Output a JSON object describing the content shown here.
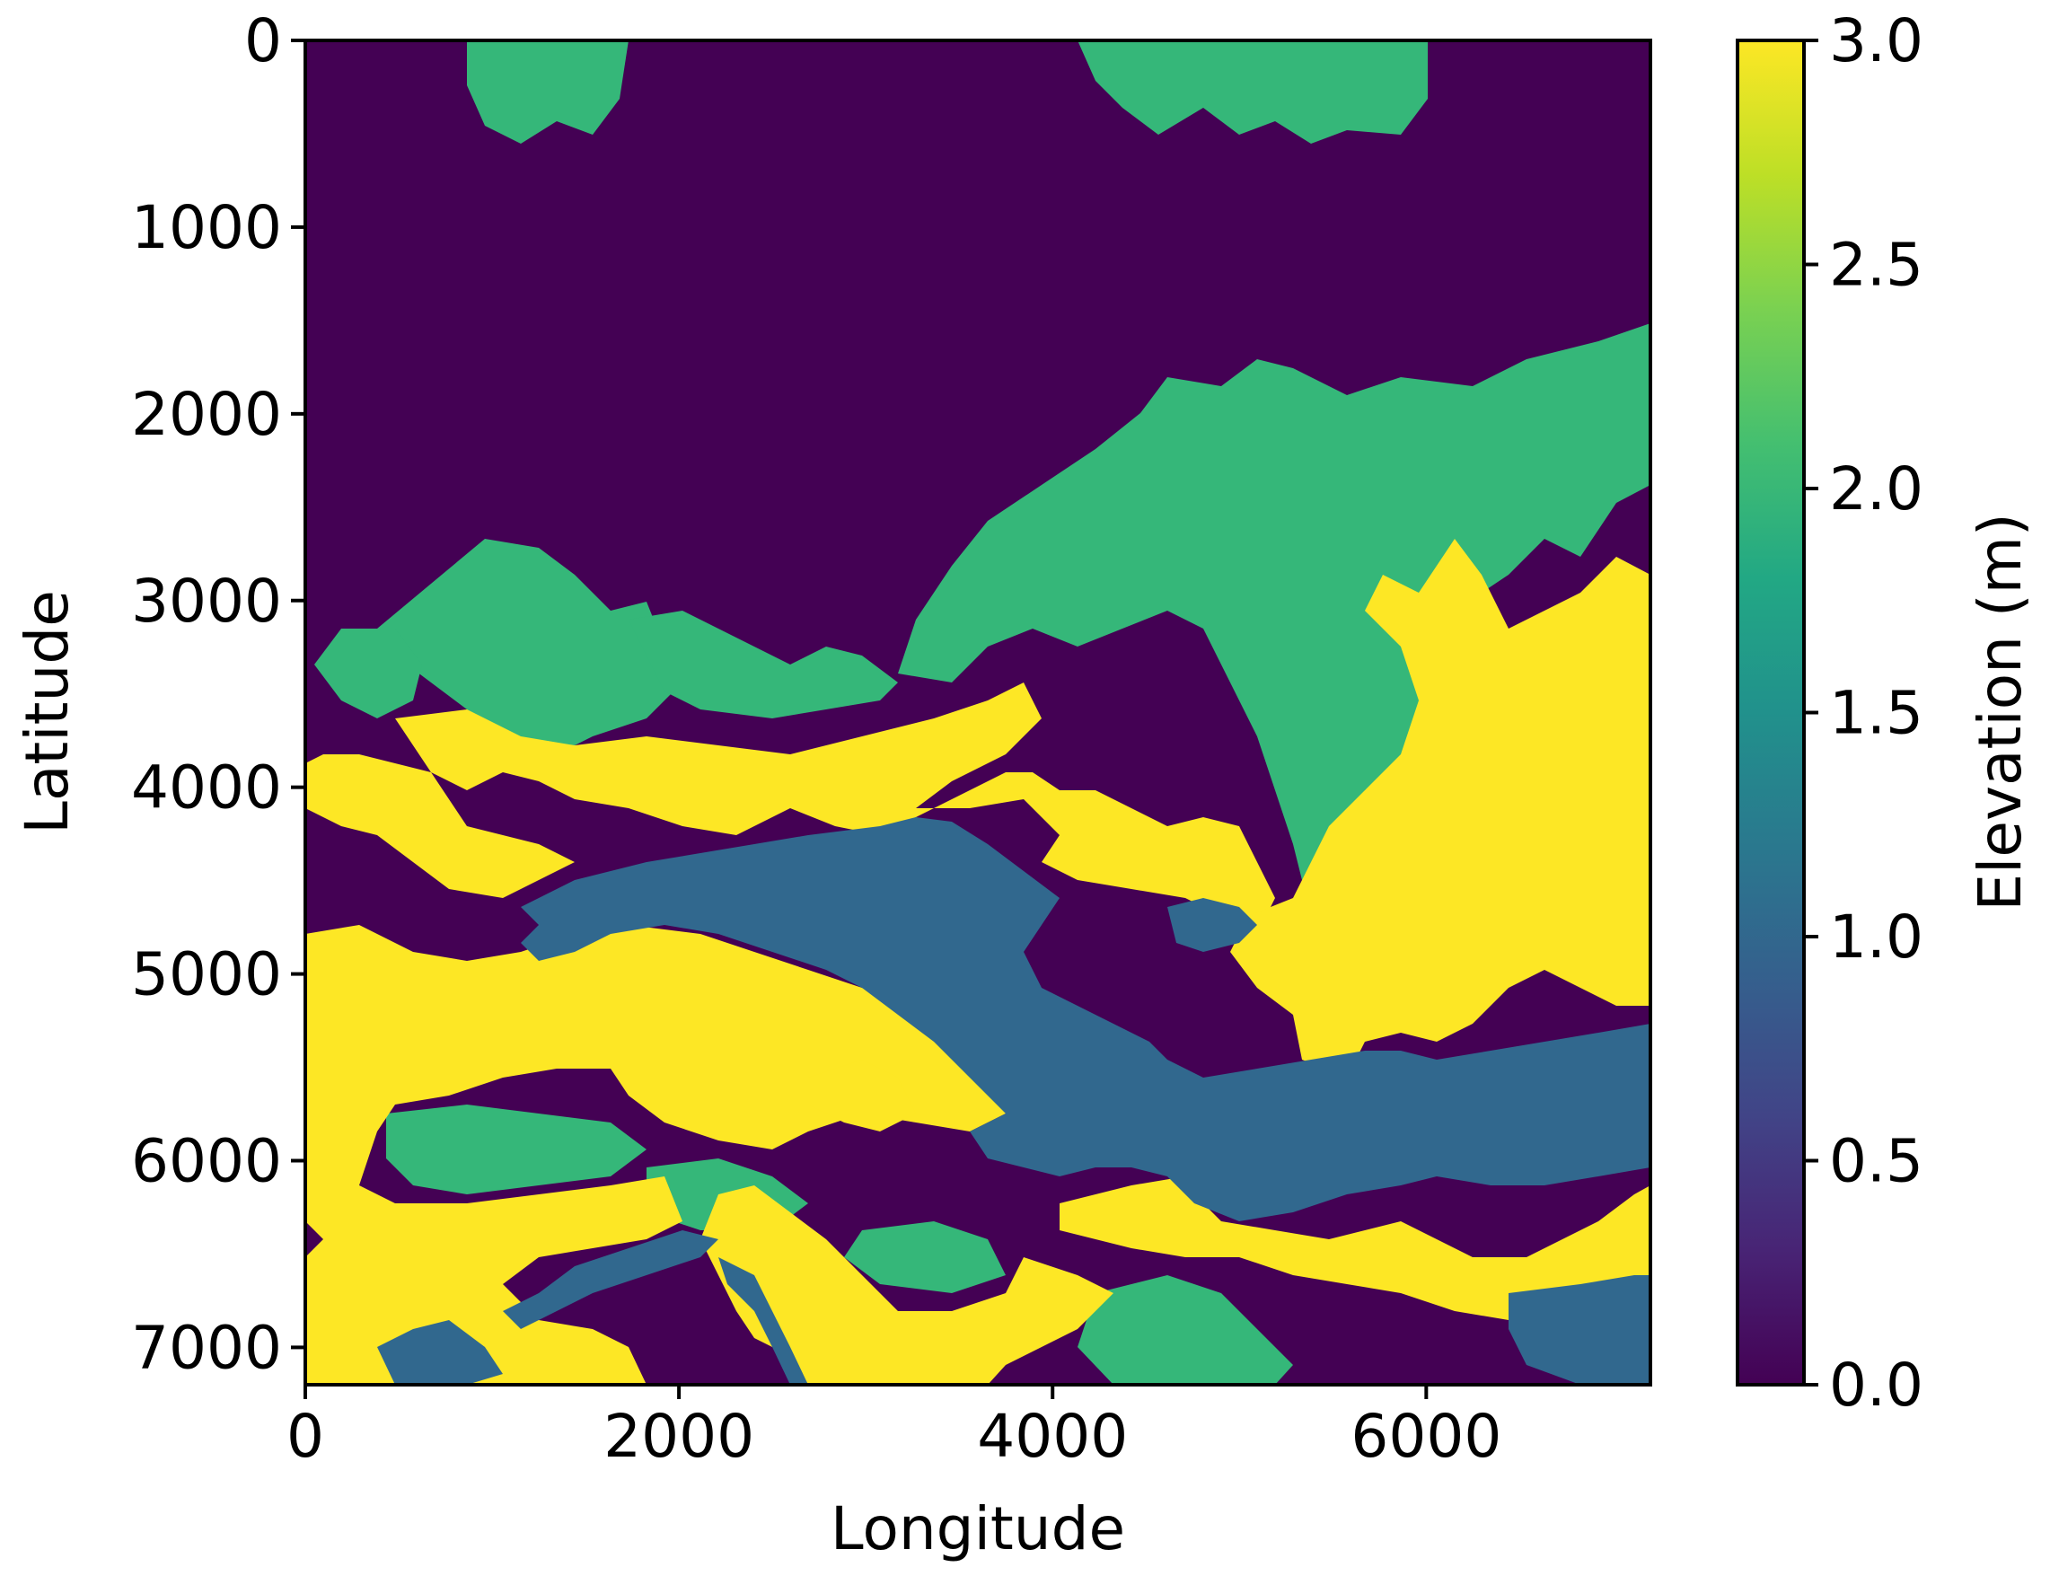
{
  "chart_data": {
    "type": "heatmap",
    "title": "",
    "xlabel": "Longitude",
    "ylabel": "Latitude",
    "xlim": [
      0,
      7200
    ],
    "ylim": [
      7200,
      0
    ],
    "x_ticks": [
      "0",
      "2000",
      "4000",
      "6000"
    ],
    "y_ticks": [
      "0",
      "1000",
      "2000",
      "3000",
      "4000",
      "5000",
      "6000",
      "7000"
    ],
    "colorbar": {
      "label": "Elevation (m)",
      "range": [
        0.0,
        3.0
      ],
      "ticks": [
        "0.0",
        "0.5",
        "1.0",
        "1.5",
        "2.0",
        "2.5",
        "3.0"
      ],
      "colormap": "viridis"
    },
    "levels": [
      {
        "value": 0.0,
        "color": "#440154"
      },
      {
        "value": 1.0,
        "color": "#31688e"
      },
      {
        "value": 2.0,
        "color": "#35b779"
      },
      {
        "value": 3.0,
        "color": "#fde725"
      }
    ],
    "grid": false,
    "legend": "colorbar-right"
  }
}
